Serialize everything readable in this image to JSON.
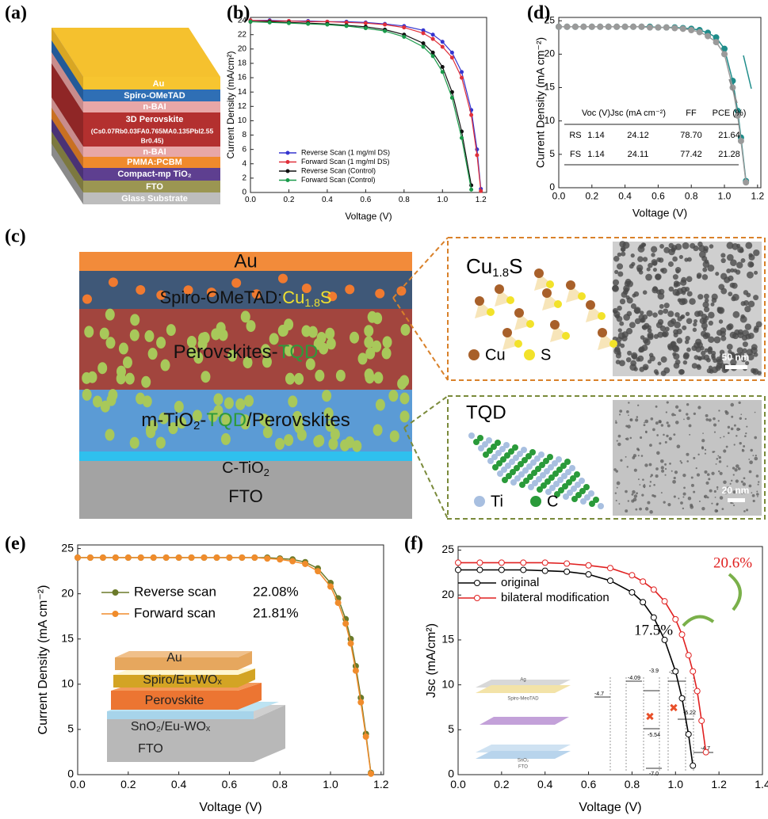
{
  "panel_labels": [
    "(a)",
    "(b)",
    "(c)",
    "(d)",
    "(e)",
    "(f)"
  ],
  "stack_a": {
    "layers": [
      "Au",
      "Spiro-OMeTAD",
      "n-BAI",
      "3D Perovskite",
      "(Cs0.07Rb0.03FA0.765MA0.135PbI2.55",
      "Br0.45)",
      "n-BAI",
      "PMMA:PCBM",
      "Compact-mp TiO₂",
      "FTO",
      "Glass Substrate"
    ]
  },
  "diagram_c": {
    "layers": {
      "au": "Au",
      "spiro": "Spiro-OMeTAD:",
      "cu": "Cu",
      "cu_sub": "1.8",
      "cu_tail": "S",
      "perov": "Perovskites-",
      "perov_tqd": "TQD",
      "mtio": "m-TiO",
      "mtio_sub": "2",
      "mtio_dash": "-",
      "mtio_tqd": "TQD",
      "mtio_tail": "/Perovskites",
      "ctio": "C-TiO",
      "ctio_sub": "2",
      "fto": "FTO"
    },
    "cu_panel": {
      "title": "Cu",
      "title_sub": "1.8",
      "title_tail": "S",
      "legend": [
        "Cu",
        "S"
      ],
      "scale": "50 nm"
    },
    "tqd_panel": {
      "title": "TQD",
      "legend": [
        "Ti",
        "C"
      ],
      "scale": "20 nm"
    }
  },
  "chart_data": [
    {
      "type": "line",
      "xlabel": "Voltage (V)",
      "ylabel": "Current Density (mA/cm²)",
      "x": [
        0,
        0.1,
        0.2,
        0.3,
        0.4,
        0.5,
        0.6,
        0.7,
        0.8,
        0.9,
        0.95,
        1.0,
        1.05,
        1.1,
        1.15,
        1.18,
        1.2
      ],
      "series": [
        {
          "name": "Reverse Scan (1 mg/ml DS)",
          "color": "#3535cf",
          "values": [
            24.0,
            24.0,
            23.9,
            23.9,
            23.8,
            23.8,
            23.7,
            23.5,
            23.2,
            22.6,
            22.0,
            21.0,
            19.5,
            16.8,
            11.5,
            6.0,
            0.5
          ]
        },
        {
          "name": "Forward Scan (1 mg/ml DS)",
          "color": "#e0303a",
          "values": [
            24.0,
            23.9,
            23.9,
            23.8,
            23.8,
            23.7,
            23.6,
            23.4,
            23.0,
            22.2,
            21.4,
            20.3,
            18.8,
            16.0,
            10.8,
            5.2,
            0.2
          ]
        },
        {
          "name": "Reverse Scan (Control)",
          "color": "#111111",
          "values": [
            23.8,
            23.8,
            23.7,
            23.6,
            23.5,
            23.3,
            23.1,
            22.7,
            22.0,
            20.8,
            19.5,
            17.5,
            14.0,
            8.5,
            1.0,
            null,
            null
          ]
        },
        {
          "name": "Forward Scan (Control)",
          "color": "#1a9a4a",
          "values": [
            23.8,
            23.7,
            23.6,
            23.5,
            23.4,
            23.2,
            22.9,
            22.5,
            21.7,
            20.3,
            19.0,
            16.8,
            13.2,
            7.6,
            0.4,
            null,
            null
          ]
        }
      ],
      "xlim": [
        0,
        1.23
      ],
      "ylim": [
        0,
        24.4
      ],
      "xticks": [
        {
          "value": 0,
          "label": "0.0"
        },
        0.2,
        0.4,
        0.6,
        0.8,
        {
          "value": 1,
          "label": "1.0"
        },
        1.2
      ],
      "yticks": [
        0,
        2,
        4,
        6,
        8,
        10,
        12,
        14,
        16,
        18,
        20,
        22,
        24
      ],
      "legend": "lower left"
    },
    {
      "type": "line",
      "xlabel": "Voltage (V)",
      "ylabel": "Current Density (mA cm⁻²)",
      "x": [
        0,
        0.05,
        0.1,
        0.15,
        0.2,
        0.25,
        0.3,
        0.35,
        0.4,
        0.45,
        0.5,
        0.55,
        0.6,
        0.65,
        0.7,
        0.75,
        0.8,
        0.85,
        0.9,
        0.95,
        1.0,
        1.05,
        1.08,
        1.1,
        1.13
      ],
      "series": [
        {
          "name": "RS",
          "color": "#1e8c8a",
          "values": [
            24.1,
            24.1,
            24.1,
            24.1,
            24.1,
            24.1,
            24.1,
            24.1,
            24.1,
            24.1,
            24.1,
            24.1,
            24.0,
            24.0,
            24.0,
            23.9,
            23.8,
            23.6,
            23.2,
            22.5,
            20.8,
            16.0,
            11.5,
            7.5,
            1.0
          ]
        },
        {
          "name": "FS",
          "color": "#9a9a9a",
          "values": [
            24.1,
            24.1,
            24.1,
            24.1,
            24.1,
            24.1,
            24.1,
            24.1,
            24.1,
            24.1,
            24.1,
            24.0,
            24.0,
            24.0,
            23.9,
            23.8,
            23.6,
            23.3,
            22.7,
            21.8,
            20.0,
            15.0,
            10.8,
            7.0,
            0.8
          ]
        }
      ],
      "xlim": [
        0,
        1.22
      ],
      "ylim": [
        0,
        25.5
      ],
      "xticks": [
        {
          "value": 0,
          "label": "0.0"
        },
        0.2,
        0.4,
        0.6,
        0.8,
        {
          "value": 1,
          "label": "1.0"
        },
        1.2
      ],
      "yticks": [
        0,
        5,
        10,
        15,
        20,
        25
      ],
      "table": {
        "header": [
          "Voc (V)",
          "Jsc (mA cm⁻²)",
          "FF",
          "PCE (%)"
        ],
        "rows": [
          [
            "RS",
            "1.14",
            "24.12",
            "78.70",
            "21.64"
          ],
          [
            "FS",
            "1.14",
            "24.11",
            "77.42",
            "21.28"
          ]
        ]
      }
    },
    {
      "type": "line",
      "xlabel": "Voltage (V)",
      "ylabel": "Current Density (mA cm⁻²)",
      "x": [
        0,
        0.05,
        0.1,
        0.15,
        0.2,
        0.25,
        0.3,
        0.35,
        0.4,
        0.45,
        0.5,
        0.55,
        0.6,
        0.65,
        0.7,
        0.75,
        0.8,
        0.85,
        0.9,
        0.95,
        1.0,
        1.03,
        1.06,
        1.08,
        1.1,
        1.12,
        1.14,
        1.16
      ],
      "series": [
        {
          "name": "Reverse scan",
          "pce": "22.08%",
          "color": "#6b7a2a",
          "values": [
            24.0,
            24.0,
            24.0,
            24.0,
            24.0,
            24.0,
            24.0,
            24.0,
            24.0,
            24.0,
            24.0,
            24.0,
            24.0,
            24.0,
            24.0,
            24.0,
            23.9,
            23.8,
            23.5,
            22.8,
            21.2,
            19.5,
            17.2,
            15.0,
            12.0,
            8.5,
            4.5,
            0.2
          ]
        },
        {
          "name": "Forward scan",
          "pce": "21.81%",
          "color": "#f08c2c",
          "values": [
            24.0,
            24.0,
            24.0,
            24.0,
            24.0,
            24.0,
            24.0,
            24.0,
            24.0,
            24.0,
            24.0,
            24.0,
            24.0,
            24.0,
            24.0,
            23.9,
            23.8,
            23.6,
            23.3,
            22.5,
            20.8,
            19.0,
            16.7,
            14.5,
            11.5,
            8.0,
            4.2,
            0.1
          ]
        }
      ],
      "xlim": [
        0,
        1.21
      ],
      "ylim": [
        0,
        25.4
      ],
      "xticks": [
        {
          "value": 0,
          "label": "0.0"
        },
        0.2,
        0.4,
        0.6,
        0.8,
        {
          "value": 1,
          "label": "1.0"
        },
        1.2
      ],
      "yticks": [
        0,
        5,
        10,
        15,
        20,
        25
      ],
      "inset_layers": [
        "Au",
        "Spiro/Eu-WOₓ",
        "Perovskite",
        "SnO₂/Eu-WOₓ",
        "FTO"
      ]
    },
    {
      "type": "line",
      "xlabel": "Voltage (V)",
      "ylabel": "Jsc (mA/cm²)",
      "x": [
        0,
        0.1,
        0.2,
        0.3,
        0.4,
        0.5,
        0.6,
        0.7,
        0.8,
        0.85,
        0.9,
        0.95,
        1.0,
        1.03,
        1.06,
        1.08,
        1.1,
        1.12,
        1.14
      ],
      "series": [
        {
          "name": "original",
          "color": "#000000",
          "values": [
            22.8,
            22.8,
            22.8,
            22.8,
            22.7,
            22.6,
            22.3,
            21.6,
            20.3,
            19.2,
            17.5,
            15.0,
            11.5,
            8.5,
            4.5,
            1.0,
            null,
            null,
            null
          ]
        },
        {
          "name": "bilateral modification",
          "color": "#e02020",
          "values": [
            23.6,
            23.6,
            23.6,
            23.6,
            23.6,
            23.5,
            23.3,
            23.0,
            22.2,
            21.5,
            20.6,
            19.3,
            17.3,
            15.6,
            13.3,
            11.5,
            9.3,
            6.0,
            2.5
          ]
        }
      ],
      "xlim": [
        0,
        1.4
      ],
      "ylim": [
        0,
        25.4
      ],
      "xticks": [
        {
          "value": 0,
          "label": "0.0"
        },
        0.2,
        0.4,
        0.6,
        0.8,
        {
          "value": 1,
          "label": "1.0"
        },
        1.2,
        1.4
      ],
      "yticks": [
        0,
        5,
        10,
        15,
        20,
        25
      ],
      "annotations": [
        "17.5%",
        "20.6%"
      ],
      "inset_device": [
        "Ag",
        "Spiro-MeoTAD",
        "SnO₂",
        "FTO"
      ],
      "inset_levels": [
        "-4.7",
        "-4.09",
        "-3.9",
        "-3.5",
        "-5.54",
        "-7.0",
        "-5.22",
        "-4.7"
      ]
    }
  ]
}
